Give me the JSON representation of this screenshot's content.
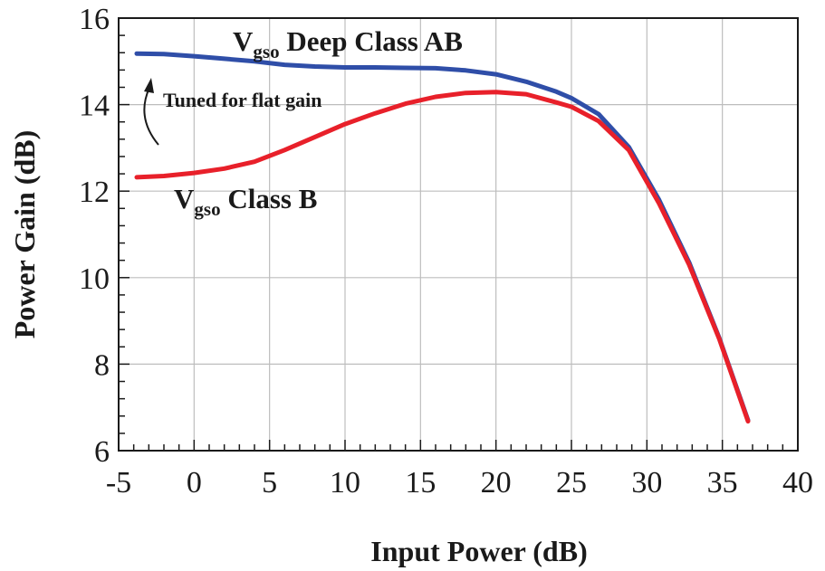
{
  "chart_data": {
    "type": "line",
    "title": "",
    "xlabel": "Input Power (dB)",
    "ylabel": "Power Gain (dB)",
    "xlim": [
      -5,
      40
    ],
    "ylim": [
      6,
      16
    ],
    "xticks": [
      -5,
      0,
      5,
      10,
      15,
      20,
      25,
      30,
      35,
      40
    ],
    "yticks": [
      6,
      8,
      10,
      12,
      14,
      16
    ],
    "x_minor_step": 1,
    "y_minor_step": 0.4,
    "grid": true,
    "series": [
      {
        "id": "deep-class-ab",
        "label_main": "V",
        "label_sub": "gso",
        "label_rest": " Deep Class AB",
        "color": "#2f4ea8",
        "points": [
          [
            -3.8,
            15.18
          ],
          [
            -2,
            15.17
          ],
          [
            0,
            15.12
          ],
          [
            2,
            15.06
          ],
          [
            4,
            15.0
          ],
          [
            6,
            14.92
          ],
          [
            8,
            14.88
          ],
          [
            10,
            14.86
          ],
          [
            12,
            14.86
          ],
          [
            14,
            14.85
          ],
          [
            16,
            14.84
          ],
          [
            18,
            14.79
          ],
          [
            20,
            14.7
          ],
          [
            22,
            14.53
          ],
          [
            24,
            14.3
          ],
          [
            25,
            14.15
          ],
          [
            26.8,
            13.78
          ],
          [
            28.8,
            13.02
          ],
          [
            30.8,
            11.8
          ],
          [
            32.8,
            10.35
          ],
          [
            34.8,
            8.6
          ],
          [
            36.7,
            6.7
          ]
        ]
      },
      {
        "id": "class-b",
        "label_main": "V",
        "label_sub": "gso",
        "label_rest": " Class B",
        "color": "#e8202a",
        "points": [
          [
            -3.8,
            12.32
          ],
          [
            -2,
            12.35
          ],
          [
            0,
            12.42
          ],
          [
            2,
            12.52
          ],
          [
            4,
            12.68
          ],
          [
            6,
            12.95
          ],
          [
            8,
            13.25
          ],
          [
            10,
            13.55
          ],
          [
            12,
            13.8
          ],
          [
            14,
            14.02
          ],
          [
            16,
            14.18
          ],
          [
            18,
            14.27
          ],
          [
            20,
            14.29
          ],
          [
            22,
            14.24
          ],
          [
            24,
            14.05
          ],
          [
            25,
            13.95
          ],
          [
            26.8,
            13.62
          ],
          [
            28.8,
            12.95
          ],
          [
            30.8,
            11.72
          ],
          [
            32.8,
            10.3
          ],
          [
            34.8,
            8.58
          ],
          [
            36.7,
            6.68
          ]
        ]
      }
    ],
    "annotation": "Tuned for flat gain"
  }
}
